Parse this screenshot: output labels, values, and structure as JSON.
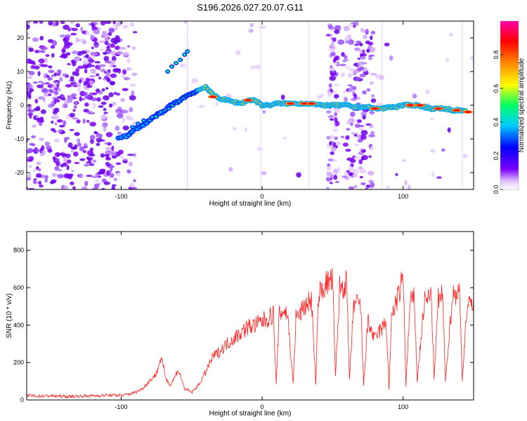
{
  "title": "S196.2026.027.20.07.G11",
  "colorbar": {
    "label": "Normalized spectral amplitude",
    "ticks": [
      "0.0",
      "0.2",
      "0.4",
      "0.6",
      "0.8"
    ],
    "tick_values": [
      0.0,
      0.2,
      0.4,
      0.6,
      0.8
    ],
    "range": [
      0,
      1
    ],
    "colors": [
      "#ffffff",
      "#7b00ff",
      "#0000ff",
      "#00ccff",
      "#00ff66",
      "#ffff00",
      "#ff8800",
      "#ff0000",
      "#ff00aa"
    ]
  },
  "chart_data": [
    {
      "type": "heatmap",
      "title": "S196.2026.027.20.07.G11",
      "xlabel": "Height of straight line (km)",
      "ylabel": "Frequency (Hz)",
      "xlim": [
        -167,
        150
      ],
      "ylim": [
        -25,
        25
      ],
      "x_ticks": [
        -100,
        0,
        100
      ],
      "x_tick_labels": [
        "-100",
        "0",
        "100"
      ],
      "y_ticks": [
        -20,
        -10,
        0,
        10,
        20
      ],
      "y_tick_labels": [
        "-20",
        "-10",
        "0",
        "10",
        "20"
      ],
      "grid": false,
      "ridge_x": [
        -102,
        -95,
        -90,
        -85,
        -80,
        -75,
        -70,
        -65,
        -60,
        -55,
        -50,
        -45,
        -40,
        -35,
        -30,
        -25,
        -20,
        -15,
        -10,
        -5,
        0,
        5,
        10,
        15,
        20,
        25,
        30,
        35,
        40,
        45,
        50,
        55,
        60,
        65,
        70,
        75,
        80,
        85,
        90,
        95,
        100,
        105,
        110,
        115,
        120,
        125,
        130,
        135,
        140,
        145
      ],
      "ridge_freq": [
        -9.5,
        -9,
        -7,
        -6,
        -4.5,
        -3,
        -2,
        0,
        1,
        2.5,
        3.5,
        4.5,
        5.5,
        3,
        2,
        1.5,
        1,
        0.5,
        1.5,
        1.5,
        0,
        0,
        0.5,
        0.5,
        0.5,
        0.5,
        0.5,
        0.5,
        0,
        0,
        0,
        0,
        0,
        -0.5,
        -0.5,
        -0.5,
        -1,
        -1,
        -0.5,
        -0.5,
        0,
        0,
        0,
        -0.5,
        -1,
        -1,
        -1,
        -1.5,
        -1.5,
        -2
      ]
    },
    {
      "type": "line",
      "xlabel": "Height of straight line (km)",
      "ylabel": "SNR (10 * v/v)",
      "xlim": [
        -167,
        150
      ],
      "ylim": [
        0,
        900
      ],
      "x_ticks": [
        -100,
        0,
        100
      ],
      "x_tick_labels": [
        "-100",
        "0",
        "100"
      ],
      "y_ticks": [
        0,
        200,
        400,
        600,
        800
      ],
      "y_tick_labels": [
        "0",
        "200",
        "400",
        "600",
        "800"
      ],
      "grid": false,
      "line_color": "#ff2222",
      "series": [
        {
          "name": "SNR",
          "x": [
            -167,
            -160,
            -150,
            -140,
            -130,
            -120,
            -110,
            -100,
            -95,
            -90,
            -85,
            -80,
            -75,
            -72,
            -70,
            -68,
            -65,
            -62,
            -60,
            -58,
            -55,
            -52,
            -50,
            -45,
            -40,
            -35,
            -30,
            -25,
            -20,
            -15,
            -10,
            -5,
            0,
            5,
            8,
            10,
            12,
            15,
            18,
            22,
            24,
            27,
            30,
            35,
            38,
            40,
            45,
            50,
            52,
            55,
            60,
            62,
            65,
            70,
            72,
            75,
            78,
            80,
            82,
            85,
            88,
            90,
            92,
            95,
            98,
            100,
            102,
            105,
            108,
            110,
            115,
            120,
            122,
            125,
            128,
            130,
            135,
            140,
            142,
            145,
            150
          ],
          "values": [
            25,
            20,
            22,
            18,
            20,
            22,
            25,
            25,
            30,
            40,
            60,
            100,
            140,
            220,
            180,
            110,
            80,
            120,
            160,
            130,
            60,
            50,
            40,
            80,
            150,
            230,
            260,
            300,
            330,
            360,
            390,
            400,
            420,
            440,
            460,
            80,
            450,
            480,
            460,
            90,
            440,
            460,
            500,
            540,
            80,
            560,
            620,
            640,
            120,
            600,
            620,
            100,
            520,
            500,
            80,
            420,
            360,
            320,
            360,
            380,
            420,
            60,
            460,
            520,
            580,
            690,
            80,
            520,
            540,
            100,
            520,
            560,
            110,
            540,
            560,
            100,
            560,
            580,
            110,
            480,
            540
          ]
        }
      ]
    }
  ]
}
